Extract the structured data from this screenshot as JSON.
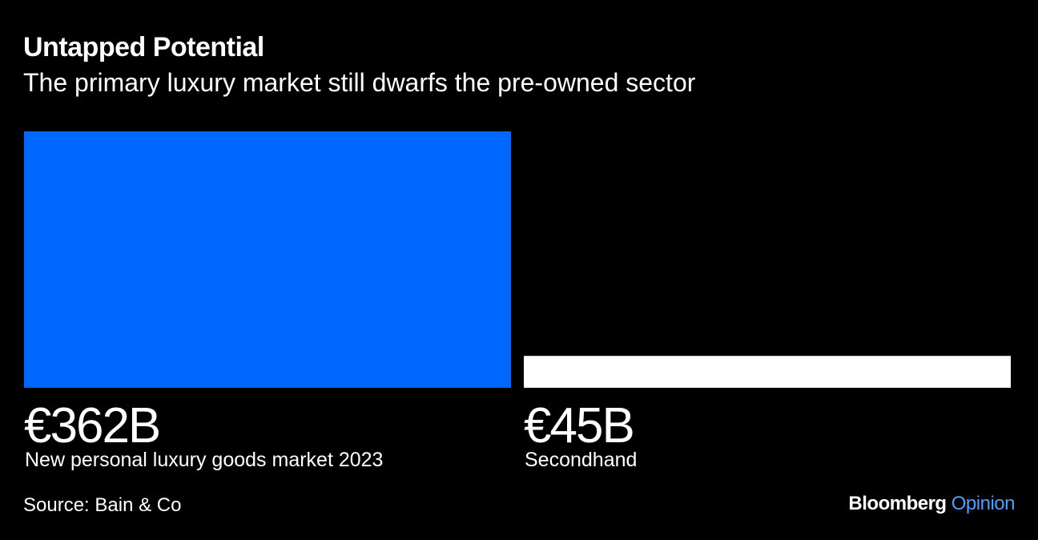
{
  "header": {
    "title": "Untapped Potential",
    "subtitle": "The primary luxury market still dwarfs the pre-owned sector"
  },
  "footer": {
    "source": "Source: Bain & Co",
    "brand_name": "Bloomberg",
    "brand_section": "Opinion"
  },
  "colors": {
    "background": "#000000",
    "text": "#ffffff",
    "accent": "#4d9fff"
  },
  "chart_data": {
    "type": "bar",
    "categories": [
      "New personal luxury goods market 2023",
      "Secondhand"
    ],
    "values": [
      362,
      45
    ],
    "value_labels": [
      "€362B",
      "€45B"
    ],
    "unit": "€ billions",
    "bar_colors": [
      "#0068ff",
      "#ffffff"
    ],
    "ylim": [
      0,
      362
    ],
    "grid": false,
    "legend": "none"
  }
}
